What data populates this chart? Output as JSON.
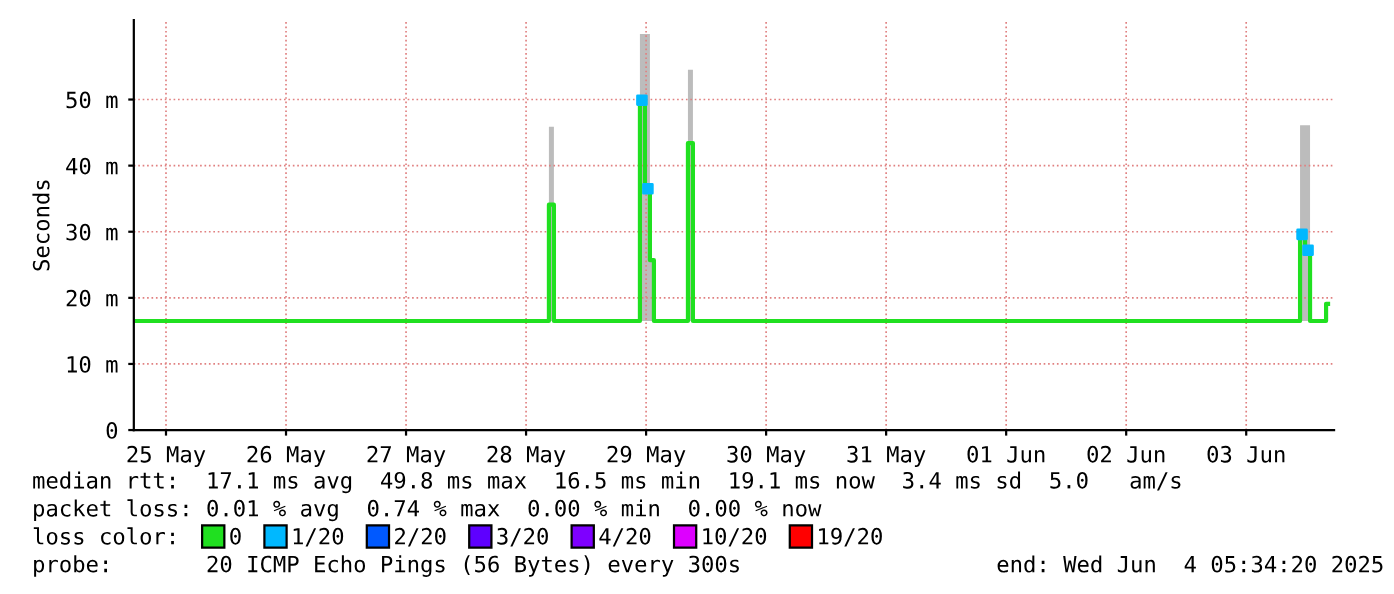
{
  "chart_data": {
    "type": "line",
    "ylabel": "Seconds",
    "xlim": [
      "2025-05-25T05:34",
      "2025-06-04T05:34"
    ],
    "xticks": [
      {
        "value": "2025-05-25T12:00",
        "label": "25 May"
      },
      {
        "value": "2025-05-26T12:00",
        "label": "26 May"
      },
      {
        "value": "2025-05-27T12:00",
        "label": "27 May"
      },
      {
        "value": "2025-05-28T12:00",
        "label": "28 May"
      },
      {
        "value": "2025-05-29T12:00",
        "label": "29 May"
      },
      {
        "value": "2025-05-30T12:00",
        "label": "30 May"
      },
      {
        "value": "2025-05-31T12:00",
        "label": "31 May"
      },
      {
        "value": "2025-06-01T12:00",
        "label": "01 Jun"
      },
      {
        "value": "2025-06-02T12:00",
        "label": "02 Jun"
      },
      {
        "value": "2025-06-03T12:00",
        "label": "03 Jun"
      }
    ],
    "ylim": [
      0,
      62
    ],
    "yticks": [
      0,
      {
        "value": 10,
        "label": "10 m"
      },
      {
        "value": 20,
        "label": "20 m"
      },
      {
        "value": 30,
        "label": "30 m"
      },
      {
        "value": 40,
        "label": "40 m"
      },
      {
        "value": 50,
        "label": "50 m"
      }
    ],
    "grid": true,
    "legend": "bottom",
    "legend_title": "loss color:",
    "series": [
      {
        "name": "0",
        "color": "#20e020",
        "x": [
          "2025-05-25T05:34",
          "2025-05-28T15:58",
          "2025-05-28T17:10",
          "2025-05-28T17:58",
          "2025-05-29T10:22",
          "2025-05-29T11:10",
          "2025-05-29T12:22",
          "2025-05-29T13:10",
          "2025-05-29T13:58",
          "2025-05-29T19:58",
          "2025-05-29T20:46",
          "2025-05-29T21:58",
          "2025-06-03T22:22",
          "2025-06-03T23:10",
          "2025-06-04T00:22",
          "2025-06-04T01:10",
          "2025-06-04T03:34",
          "2025-06-04T04:22"
        ],
        "values": [
          16.5,
          16.5,
          34.1,
          16.5,
          16.5,
          49.9,
          36.5,
          25.7,
          16.5,
          16.5,
          43.4,
          16.5,
          16.5,
          29.6,
          27.2,
          16.5,
          16.5,
          19.1
        ],
        "lower": [
          16.5,
          16.5,
          16.5,
          16.5,
          16.5,
          16.5,
          16.5,
          16.5,
          16.5,
          16.5,
          16.5,
          16.5,
          16.5,
          16.5,
          16.5,
          16.5,
          16.5,
          16.5
        ],
        "upper": [
          16.5,
          16.5,
          45.9,
          16.5,
          16.5,
          59.9,
          59.9,
          25.7,
          16.5,
          16.5,
          54.5,
          16.5,
          16.5,
          46.1,
          46.1,
          16.5,
          16.5,
          19.1
        ]
      },
      {
        "name": "1/20",
        "color": "#00b8ff",
        "type": "scatter",
        "marker": "square",
        "x": [
          "2025-05-29T11:10",
          "2025-05-29T12:22",
          "2025-06-03T23:10",
          "2025-06-04T00:22"
        ],
        "values": [
          49.9,
          36.5,
          29.6,
          27.2
        ]
      },
      {
        "name": "2/20",
        "color": "#0059ff",
        "type": "scatter"
      },
      {
        "name": "3/20",
        "color": "#5e00ff",
        "type": "scatter"
      },
      {
        "name": "4/20",
        "color": "#7e00ff",
        "type": "scatter"
      },
      {
        "name": "10/20",
        "color": "#dd00ff",
        "type": "scatter"
      },
      {
        "name": "19/20",
        "color": "#ff0000",
        "type": "scatter"
      }
    ],
    "annotations": [
      "median rtt:  17.1 ms avg  49.8 ms max  16.5 ms min  19.1 ms now  3.4 ms sd  5.0   am/s",
      "packet loss: 0.01 % avg  0.74 % max  0.00 % min  0.00 % now",
      "probe:       20 ICMP Echo Pings (56 Bytes) every 300s",
      "end: Wed Jun  4 05:34:20 2025"
    ]
  }
}
